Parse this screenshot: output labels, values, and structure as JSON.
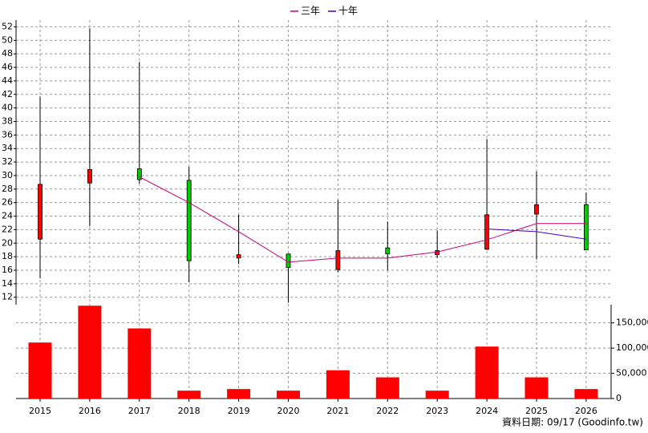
{
  "chart_data": {
    "type": "candlestick",
    "categories": [
      "2015",
      "2016",
      "2017",
      "2018",
      "2019",
      "2020",
      "2021",
      "2022",
      "2023",
      "2024",
      "2025",
      "2026"
    ],
    "open": [
      20.6,
      28.9,
      31.0,
      29.3,
      17.8,
      18.4,
      16.1,
      19.3,
      18.3,
      19.1,
      24.3,
      25.7
    ],
    "high": [
      41.7,
      51.8,
      46.8,
      31.3,
      24.2,
      18.4,
      26.4,
      23.2,
      21.9,
      35.4,
      30.6,
      27.5
    ],
    "low": [
      14.8,
      22.5,
      28.8,
      14.2,
      16.9,
      11.2,
      15.7,
      16.0,
      17.8,
      19.0,
      17.6,
      19.0
    ],
    "close": [
      28.7,
      30.9,
      29.4,
      17.4,
      18.3,
      16.4,
      18.9,
      18.4,
      18.9,
      24.2,
      25.7,
      19.0
    ],
    "up_color": "#ff0000",
    "down_color": "#00cc00",
    "series": [
      {
        "name": "三年",
        "color": "#cc0077",
        "values": [
          null,
          null,
          29.8,
          26.0,
          21.7,
          17.2,
          17.8,
          17.8,
          18.7,
          20.5,
          22.9,
          22.9
        ]
      },
      {
        "name": "十年",
        "color": "#4400cc",
        "values": [
          null,
          null,
          null,
          null,
          null,
          null,
          null,
          null,
          null,
          22.1,
          21.7,
          20.6
        ]
      }
    ],
    "volume": {
      "color": "#ff0000",
      "values": [
        111000,
        184000,
        139000,
        15600,
        18800,
        15600,
        56000,
        42000,
        15600,
        103000,
        42000,
        18800
      ]
    },
    "ylim": [
      10.9,
      53
    ],
    "yticks": [
      12,
      14,
      16,
      18,
      20,
      22,
      24,
      26,
      28,
      30,
      32,
      34,
      36,
      38,
      40,
      42,
      44,
      46,
      48,
      50,
      52
    ],
    "y2lim": [
      0,
      186000
    ],
    "y2ticks": [
      0,
      {
        "value": 50000,
        "label": "50,000"
      },
      {
        "value": 100000,
        "label": "100,000"
      },
      {
        "value": 150000,
        "label": "150,000"
      }
    ],
    "grid": true,
    "legend": "top",
    "footer": "資料日期: 09/17 (Goodinfo.tw)"
  }
}
